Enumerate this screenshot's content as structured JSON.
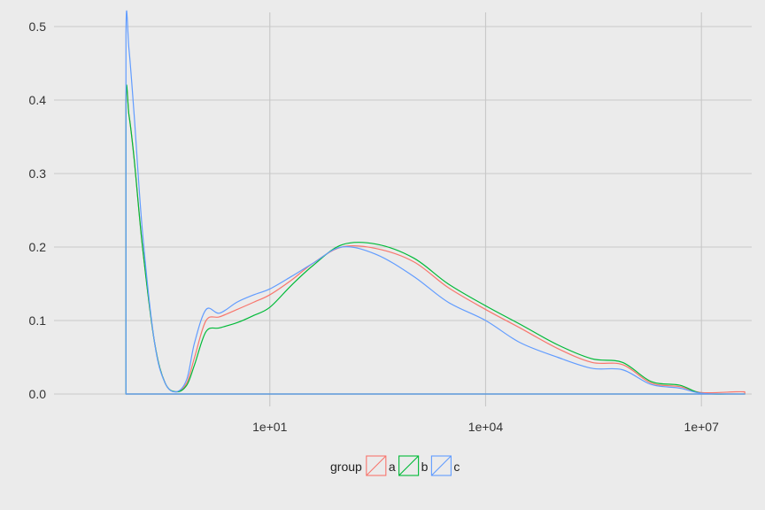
{
  "chart_data": {
    "type": "line",
    "subtype": "density",
    "x_scale": "log10",
    "xlim": [
      0.01,
      50000000
    ],
    "ylim": [
      0,
      0.5
    ],
    "x_ticks": [
      10,
      10000,
      10000000
    ],
    "x_tick_labels": [
      "1e+01",
      "1e+04",
      "1e+07"
    ],
    "y_ticks": [
      0,
      0.1,
      0.2,
      0.3,
      0.4,
      0.5
    ],
    "y_tick_labels": [
      "0.0",
      "0.1",
      "0.2",
      "0.3",
      "0.4",
      "0.5"
    ],
    "grid": true,
    "legend": {
      "title": "group",
      "position": "bottom",
      "entries": [
        "a",
        "b",
        "c"
      ]
    },
    "series": [
      {
        "name": "a",
        "color": "#F8766D",
        "x": [
          0.1,
          0.1,
          0.11,
          0.13,
          0.17,
          0.25,
          0.35,
          0.5,
          0.7,
          0.9,
          1.3,
          2,
          3.5,
          6,
          10,
          20,
          40,
          100,
          300,
          1000,
          3000,
          10000,
          30000,
          100000,
          300000,
          800000,
          2000000,
          5000000,
          10000000,
          30000000,
          40000000
        ],
        "y": [
          0,
          0.39,
          0.38,
          0.32,
          0.2,
          0.07,
          0.015,
          0.003,
          0.015,
          0.05,
          0.1,
          0.105,
          0.115,
          0.125,
          0.135,
          0.155,
          0.178,
          0.2,
          0.198,
          0.18,
          0.145,
          0.115,
          0.09,
          0.062,
          0.043,
          0.04,
          0.015,
          0.01,
          0.002,
          0.003,
          0.003
        ]
      },
      {
        "name": "b",
        "color": "#00BA38",
        "x": [
          0.1,
          0.1,
          0.11,
          0.13,
          0.17,
          0.25,
          0.35,
          0.5,
          0.7,
          0.9,
          1.3,
          2,
          3.5,
          6,
          10,
          20,
          40,
          100,
          300,
          1000,
          3000,
          10000,
          30000,
          100000,
          300000,
          800000,
          2000000,
          5000000,
          10000000,
          30000000,
          40000000
        ],
        "y": [
          0,
          0.393,
          0.38,
          0.32,
          0.2,
          0.07,
          0.015,
          0.003,
          0.012,
          0.04,
          0.085,
          0.09,
          0.097,
          0.107,
          0.118,
          0.148,
          0.175,
          0.203,
          0.204,
          0.185,
          0.15,
          0.12,
          0.095,
          0.067,
          0.048,
          0.043,
          0.017,
          0.012,
          0.001,
          0.0,
          0.0
        ]
      },
      {
        "name": "c",
        "color": "#619CFF",
        "x": [
          0.1,
          0.1,
          0.11,
          0.13,
          0.17,
          0.25,
          0.35,
          0.5,
          0.7,
          0.9,
          1.3,
          2,
          3.5,
          6,
          10,
          20,
          40,
          100,
          300,
          1000,
          3000,
          10000,
          30000,
          100000,
          300000,
          800000,
          2000000,
          5000000,
          10000000,
          30000000,
          40000000
        ],
        "y": [
          0,
          0.487,
          0.47,
          0.38,
          0.22,
          0.07,
          0.015,
          0.003,
          0.02,
          0.07,
          0.115,
          0.11,
          0.125,
          0.135,
          0.143,
          0.16,
          0.178,
          0.2,
          0.19,
          0.16,
          0.125,
          0.1,
          0.07,
          0.05,
          0.035,
          0.033,
          0.013,
          0.008,
          0.001,
          0.0,
          0.0
        ]
      }
    ]
  }
}
